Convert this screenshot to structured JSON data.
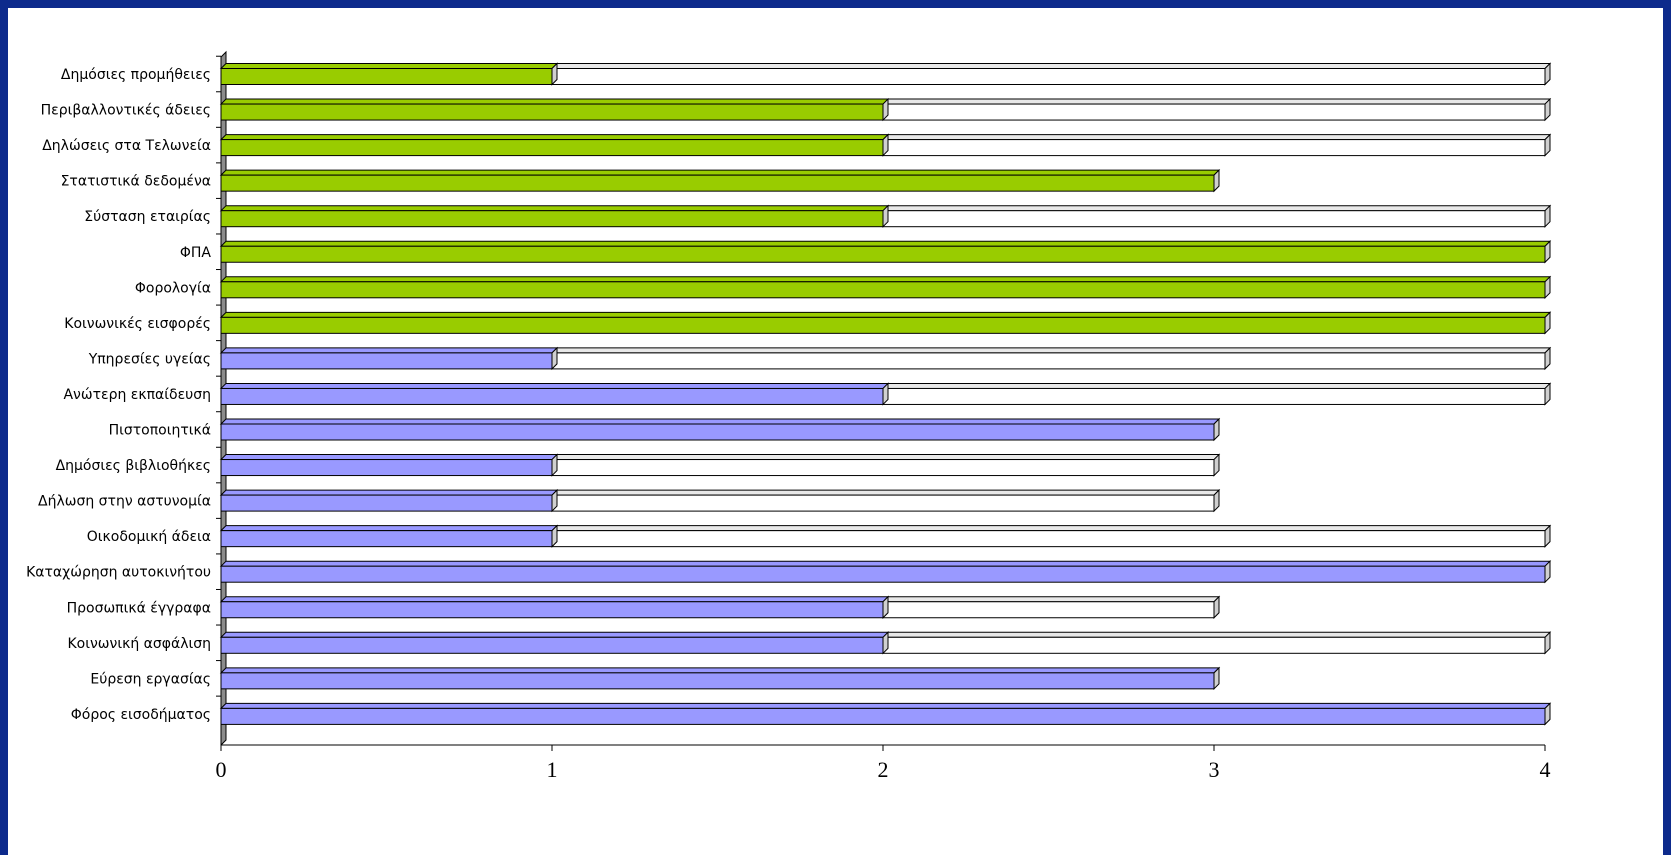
{
  "chart_data": {
    "type": "bar",
    "orientation": "horizontal",
    "stacked": true,
    "style": "3d",
    "categories": [
      "Δημόσιες προμήθειες",
      "Περιβαλλοντικές άδειες",
      "Δηλώσεις στα Τελωνεία",
      "Στατιστικά δεδομένα",
      "Σύσταση εταιρίας",
      "ΦΠΑ",
      "Φορολογία",
      "Κοινωνικές εισφορές",
      "Υπηρεσίες υγείας",
      "Ανώτερη εκπαίδευση",
      "Πιστοποιητικά",
      "Δημόσιες βιβλιοθήκες",
      "Δήλωση στην αστυνομία",
      "Οικοδομική άδεια",
      "Καταχώρηση αυτοκινήτου",
      "Προσωπικά έγγραφα",
      "Κοινωνική ασφάλιση",
      "Εύρεση εργασίας",
      "Φόρος εισοδήματος"
    ],
    "values": [
      1,
      2,
      2,
      3,
      2,
      4,
      4,
      4,
      1,
      2,
      3,
      1,
      1,
      1,
      4,
      2,
      2,
      3,
      4
    ],
    "totals": [
      4,
      4,
      4,
      3,
      4,
      4,
      4,
      4,
      4,
      4,
      3,
      3,
      3,
      4,
      4,
      3,
      4,
      3,
      4
    ],
    "groups": [
      {
        "color": "#99cc00",
        "categories_count": 8
      },
      {
        "color": "#9999ff",
        "categories_count": 11
      }
    ],
    "remainder_color": "#ffffff",
    "xlim": [
      0,
      4
    ],
    "xticks": [
      "0",
      "1",
      "2",
      "3",
      "4"
    ],
    "grid": false,
    "legend": "none",
    "title": "",
    "xlabel": "",
    "ylabel": ""
  }
}
